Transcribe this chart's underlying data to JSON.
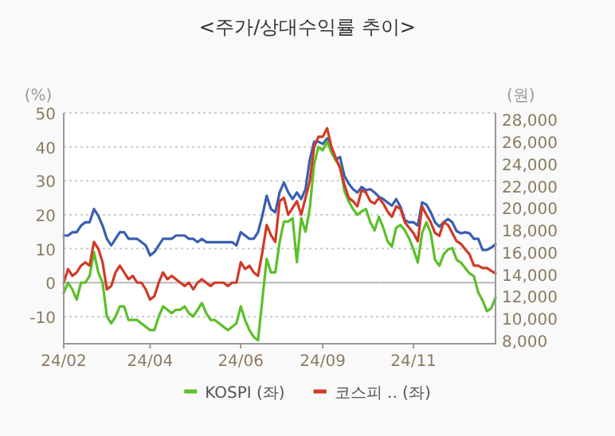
{
  "chart_data": {
    "type": "line",
    "title": "<주가/상대수익률 추이>",
    "ylabel": "(%)",
    "y2label": "(원)",
    "categories": [
      "24/02",
      null,
      null,
      null,
      null,
      null,
      null,
      null,
      null,
      null,
      null,
      null,
      null,
      null,
      null,
      null,
      null,
      null,
      null,
      null,
      "24/04",
      null,
      null,
      null,
      null,
      null,
      null,
      null,
      null,
      null,
      null,
      null,
      null,
      null,
      null,
      null,
      null,
      null,
      null,
      null,
      null,
      "24/06",
      null,
      null,
      null,
      null,
      null,
      null,
      null,
      null,
      null,
      null,
      null,
      null,
      null,
      null,
      null,
      null,
      null,
      null,
      "24/09",
      null,
      null,
      null,
      null,
      null,
      null,
      null,
      null,
      null,
      null,
      null,
      null,
      null,
      null,
      null,
      null,
      null,
      null,
      null,
      null,
      "24/11",
      null,
      null,
      null,
      null,
      null,
      null,
      null,
      null,
      null,
      null,
      null,
      null,
      null,
      null,
      null,
      null,
      null,
      null,
      null
    ],
    "series": [
      {
        "color": "#3a5fb0",
        "axis": "y2",
        "values": [
          17500,
          17500,
          17800,
          17800,
          18400,
          18700,
          18700,
          19900,
          19300,
          18400,
          17200,
          16600,
          17200,
          17800,
          17800,
          17200,
          17200,
          17200,
          16900,
          16600,
          15700,
          16000,
          16600,
          17200,
          17200,
          17200,
          17500,
          17500,
          17500,
          17200,
          17200,
          16900,
          17200,
          16900,
          16900,
          16900,
          16900,
          16900,
          16900,
          16900,
          16600,
          17800,
          17500,
          17200,
          17200,
          17800,
          19300,
          21100,
          19900,
          19600,
          21400,
          22300,
          21400,
          20800,
          21400,
          20800,
          21700,
          24400,
          26000,
          26000,
          25800,
          26300,
          25100,
          24400,
          24600,
          22900,
          22200,
          21700,
          21400,
          21900,
          21600,
          21700,
          21400,
          21000,
          20800,
          20500,
          20200,
          20800,
          20100,
          18900,
          18700,
          18700,
          18400,
          20500,
          20300,
          19600,
          18700,
          18300,
          18700,
          19000,
          18700,
          17900,
          17700,
          17800,
          17700,
          17200,
          17200,
          16200,
          16200,
          16400,
          16700
        ]
      },
      {
        "name": "KOSPI (좌)",
        "color": "#5cbf2a",
        "values": [
          -3,
          0,
          -2,
          -5,
          0,
          0,
          2,
          9,
          3,
          0,
          -10,
          -12,
          -10,
          -7,
          -7,
          -11,
          -11,
          -11,
          -12,
          -13,
          -14,
          -14,
          -10,
          -7,
          -8,
          -9,
          -8,
          -8,
          -7,
          -9,
          -10,
          -8,
          -6,
          -9,
          -11,
          -11,
          -12,
          -13,
          -14,
          -13,
          -12,
          -7,
          -11,
          -14,
          -16,
          -17,
          -5,
          7,
          3,
          3,
          12,
          18,
          18,
          19,
          6,
          19,
          15,
          22,
          35,
          40,
          39,
          41.6,
          38.4,
          36,
          34.4,
          27,
          24,
          21.7,
          20,
          21,
          21.7,
          17.8,
          15.4,
          19.4,
          16.2,
          12.2,
          10.6,
          16.2,
          17,
          15.4,
          13,
          9.8,
          5.9,
          14.6,
          17.8,
          14.6,
          6.7,
          5,
          8.3,
          9.8,
          10.2,
          6.7,
          5.9,
          4.3,
          2.7,
          1.9,
          -2.9,
          -5.2,
          -8.4,
          -7.6,
          -4.4
        ]
      },
      {
        "name": "코스피 .. (좌)",
        "color": "#d03a26",
        "values": [
          0,
          4,
          2,
          3,
          5,
          6,
          5,
          12,
          10,
          6,
          -2,
          -1,
          3,
          5,
          3,
          1,
          2,
          0,
          0,
          -2,
          -5,
          -4,
          0,
          3,
          1,
          2,
          1,
          0,
          -1,
          0,
          -2,
          0,
          1,
          0,
          -1,
          0,
          0,
          0,
          -1,
          0,
          0,
          6,
          4,
          5,
          3,
          2,
          9,
          17,
          14,
          12,
          24,
          25,
          20,
          22,
          24,
          20,
          25,
          30,
          40,
          43,
          43,
          45.5,
          40,
          36.8,
          33.7,
          28.9,
          25,
          24,
          22.5,
          27.3,
          26.5,
          24,
          23.3,
          25,
          23.3,
          21,
          19.4,
          22.5,
          21.7,
          17.8,
          16.2,
          14.6,
          12.2,
          22.5,
          20,
          17.8,
          14.6,
          13.8,
          17.8,
          17,
          14.6,
          12.2,
          11.4,
          9.8,
          8.3,
          5,
          5,
          4.3,
          4.3,
          3.5,
          2.7
        ]
      }
    ],
    "ylim": [
      -18,
      50
    ],
    "yticks": [
      -10,
      0,
      10,
      20,
      30,
      40,
      50
    ],
    "y2lim": [
      7700,
      28600
    ],
    "y2ticks": [
      {
        "value": 8000,
        "label": "8,000"
      },
      {
        "value": 10000,
        "label": "10,000"
      },
      {
        "value": 12000,
        "label": "12,000"
      },
      {
        "value": 14000,
        "label": "14,000"
      },
      {
        "value": 16000,
        "label": "16,000"
      },
      {
        "value": 18000,
        "label": "18,000"
      },
      {
        "value": 20000,
        "label": "20,000"
      },
      {
        "value": 22000,
        "label": "22,000"
      },
      {
        "value": 24000,
        "label": "24,000"
      },
      {
        "value": 26000,
        "label": "26,000"
      },
      {
        "value": 28000,
        "label": "28,000"
      }
    ],
    "grid": "y",
    "legend": "bottom",
    "ref_lines": [
      {
        "axis": "y",
        "value": 0,
        "color": "#bbbbbb"
      }
    ]
  }
}
